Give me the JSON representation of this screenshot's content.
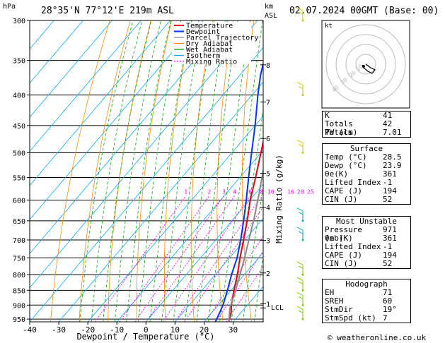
{
  "header": {
    "p_unit": "hPa",
    "location": "28°35'N  77°12'E  219m  ASL",
    "km_unit": "km",
    "asl": "ASL",
    "datetime": "02.07.2024  00GMT  (Base: 00)"
  },
  "footer": {
    "credit": "© weatheronline.co.uk"
  },
  "chart_data": {
    "type": "line",
    "subtype": "skew-t log-p",
    "xlabel": "Dewpoint / Temperature (°C)",
    "ylabel_right": "Mixing Ratio (g/kg)",
    "pressure_ticks": [
      300,
      350,
      400,
      450,
      500,
      550,
      600,
      650,
      700,
      750,
      800,
      850,
      900,
      950
    ],
    "temp_ticks": [
      -40,
      -30,
      -20,
      -10,
      0,
      10,
      20,
      30
    ],
    "xlim": [
      -40,
      40
    ],
    "ylim": [
      960,
      300
    ],
    "altitude_ticks": [
      {
        "km": "1",
        "p": 895
      },
      {
        "km": "2",
        "p": 795
      },
      {
        "km": "3",
        "p": 701
      },
      {
        "km": "4",
        "p": 617
      },
      {
        "km": "5",
        "p": 541
      },
      {
        "km": "6",
        "p": 473
      },
      {
        "km": "7",
        "p": 411
      },
      {
        "km": "8",
        "p": 356
      }
    ],
    "lcl_label": "LCL",
    "lcl_p": 910,
    "mixing_ratio_labels": [
      "1",
      "2",
      "3",
      "4",
      "6",
      "8",
      "10",
      "16",
      "20",
      "25"
    ],
    "mixing_ratio_values": [
      1,
      2,
      3,
      4,
      6,
      8,
      10,
      16,
      20,
      25
    ],
    "mixing_ratio_label_p": 590,
    "legend": [
      {
        "name": "Temperature",
        "color": "#e8001c",
        "dash": "none"
      },
      {
        "name": "Dewpoint",
        "color": "#0033ff",
        "dash": "none"
      },
      {
        "name": "Parcel Trajectory",
        "color": "#888888",
        "dash": "none"
      },
      {
        "name": "Dry Adiabat",
        "color": "#ff8800",
        "dash": "none"
      },
      {
        "name": "Wet Adiabat",
        "color": "#00aa00",
        "dash": "none"
      },
      {
        "name": "Isotherm",
        "color": "#00aaff",
        "dash": "none"
      },
      {
        "name": "Mixing Ratio",
        "color": "#ff00ff",
        "dash": "2,2"
      }
    ],
    "legend_position": "top-left",
    "series": [
      {
        "name": "Temperature",
        "color": "#e8001c",
        "points": [
          [
            960,
            28.5
          ],
          [
            925,
            26.5
          ],
          [
            900,
            24.5
          ],
          [
            850,
            21.0
          ],
          [
            800,
            17.6
          ],
          [
            750,
            13.6
          ],
          [
            700,
            9.6
          ],
          [
            650,
            5.2
          ],
          [
            600,
            0.2
          ],
          [
            550,
            -4.6
          ],
          [
            500,
            -10.0
          ],
          [
            450,
            -16.0
          ],
          [
            400,
            -23.2
          ],
          [
            370,
            -28.0
          ],
          [
            350,
            -31.8
          ]
        ]
      },
      {
        "name": "Dewpoint",
        "color": "#0033ff",
        "points": [
          [
            960,
            23.9
          ],
          [
            925,
            22.6
          ],
          [
            900,
            21.6
          ],
          [
            850,
            18.8
          ],
          [
            800,
            15.6
          ],
          [
            750,
            12.6
          ],
          [
            700,
            8.6
          ],
          [
            650,
            4.0
          ],
          [
            600,
            -1.2
          ],
          [
            550,
            -7.0
          ],
          [
            500,
            -13.2
          ],
          [
            450,
            -20.0
          ],
          [
            400,
            -28.0
          ],
          [
            370,
            -33.0
          ],
          [
            350,
            -36.0
          ]
        ]
      },
      {
        "name": "Parcel Trajectory",
        "color": "#888888",
        "points": [
          [
            960,
            28.5
          ],
          [
            910,
            24.8
          ],
          [
            850,
            21.6
          ],
          [
            800,
            18.5
          ],
          [
            750,
            15.2
          ],
          [
            700,
            11.4
          ],
          [
            650,
            7.4
          ],
          [
            600,
            2.8
          ],
          [
            550,
            -2.4
          ],
          [
            500,
            -8.2
          ],
          [
            450,
            -14.8
          ],
          [
            400,
            -22.4
          ],
          [
            370,
            -27.2
          ]
        ]
      }
    ],
    "hodograph_label": "kt",
    "hodograph_ring_labels": [
      "10",
      "20",
      "30",
      "40"
    ],
    "wind_barbs": [
      {
        "p": 950,
        "color": "#7fcc00"
      },
      {
        "p": 900,
        "color": "#7fcc00"
      },
      {
        "p": 850,
        "color": "#7fcc00"
      },
      {
        "p": 800,
        "color": "#7fcc00"
      },
      {
        "p": 700,
        "color": "#00bbaa"
      },
      {
        "p": 650,
        "color": "#00bbaa"
      },
      {
        "p": 500,
        "color": "#cccc00"
      },
      {
        "p": 400,
        "color": "#cccc00"
      },
      {
        "p": 300,
        "color": "#cccc00"
      }
    ]
  },
  "indices": {
    "basic": [
      {
        "label": "K",
        "value": "41"
      },
      {
        "label": "Totals Totals",
        "value": "42"
      },
      {
        "label": "PW (cm)",
        "value": "7.01"
      }
    ],
    "surface": {
      "title": "Surface",
      "rows": [
        {
          "label": "Temp (°C)",
          "value": "28.5"
        },
        {
          "label": "Dewp (°C)",
          "value": "23.9"
        },
        {
          "label": "θe(K)",
          "value": "361"
        },
        {
          "label": "Lifted Index",
          "value": "-1"
        },
        {
          "label": "CAPE (J)",
          "value": "194"
        },
        {
          "label": "CIN (J)",
          "value": "52"
        }
      ]
    },
    "most_unstable": {
      "title": "Most Unstable",
      "rows": [
        {
          "label": "Pressure (mb)",
          "value": "971"
        },
        {
          "label": "θe (K)",
          "value": "361"
        },
        {
          "label": "Lifted Index",
          "value": "-1"
        },
        {
          "label": "CAPE (J)",
          "value": "194"
        },
        {
          "label": "CIN (J)",
          "value": "52"
        }
      ]
    },
    "hodograph": {
      "title": "Hodograph",
      "rows": [
        {
          "label": "EH",
          "value": "71"
        },
        {
          "label": "SREH",
          "value": "60"
        },
        {
          "label": "StmDir",
          "value": "19°"
        },
        {
          "label": "StmSpd (kt)",
          "value": "7"
        }
      ]
    }
  }
}
